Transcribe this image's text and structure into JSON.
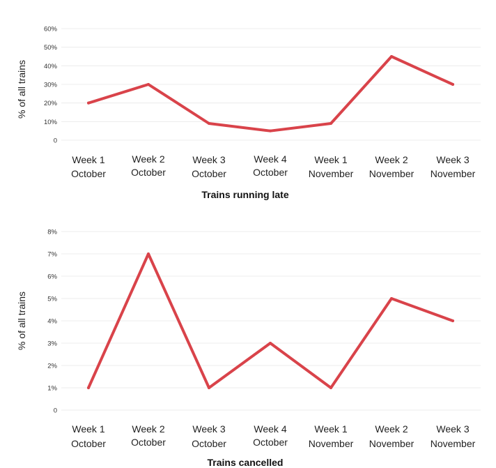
{
  "colors": {
    "line": "#d9434a",
    "grid": "#ececec",
    "text": "#222222"
  },
  "chart_data": [
    {
      "type": "line",
      "title": "Trains running late",
      "xlabel": "",
      "ylabel": "% of all trains",
      "categories": [
        [
          "Week 1",
          "October"
        ],
        [
          "Week 2",
          "October"
        ],
        [
          "Week 3",
          "October"
        ],
        [
          "Week 4",
          "October"
        ],
        [
          "Week 1",
          "November"
        ],
        [
          "Week 2",
          "November"
        ],
        [
          "Week 3",
          "November"
        ]
      ],
      "values": [
        20,
        30,
        9,
        5,
        9,
        45,
        30
      ],
      "yticks": [
        "0",
        "10%",
        "20%",
        "30%",
        "40%",
        "50%",
        "60%"
      ],
      "ylim": [
        0,
        60
      ],
      "grid": true
    },
    {
      "type": "line",
      "title": "Trains cancelled",
      "xlabel": "",
      "ylabel": "% of all trains",
      "categories": [
        [
          "Week 1",
          "October"
        ],
        [
          "Week 2",
          "October"
        ],
        [
          "Week 3",
          "October"
        ],
        [
          "Week 4",
          "October"
        ],
        [
          "Week 1",
          "November"
        ],
        [
          "Week 2",
          "November"
        ],
        [
          "Week 3",
          "November"
        ]
      ],
      "values": [
        1,
        7,
        1,
        3,
        1,
        5,
        4
      ],
      "yticks": [
        "0",
        "1%",
        "2%",
        "3%",
        "4%",
        "5%",
        "6%",
        "7%",
        "8%"
      ],
      "ylim": [
        0,
        8
      ],
      "grid": true
    }
  ]
}
